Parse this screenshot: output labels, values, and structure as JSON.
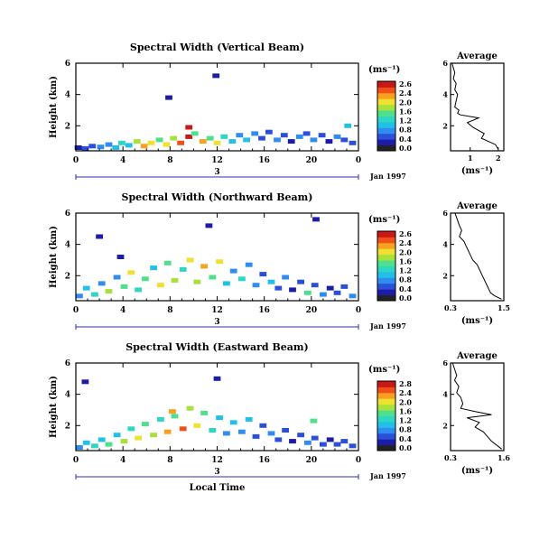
{
  "palette": [
    "#222222",
    "#1c1ca8",
    "#2a4fd8",
    "#2f8df0",
    "#22c0e8",
    "#2ed6c4",
    "#4ee08a",
    "#a8e03c",
    "#f0e030",
    "#f8a020",
    "#f05018",
    "#c81818"
  ],
  "chart_data": [
    {
      "type": "heatmap",
      "title": "Spectral Width (Vertical Beam)",
      "ylabel": "Height (km)",
      "x_ticks": [
        "0",
        "4",
        "8",
        "12",
        "16",
        "20",
        "0"
      ],
      "y_ticks": [
        "6",
        "4",
        "2"
      ],
      "xlim": [
        0,
        24
      ],
      "ylim": [
        0.4,
        6
      ],
      "day_label": "3",
      "date_label": "Jan 1997",
      "colorbar": {
        "unit_label": "(ms⁻¹)",
        "ticks": [
          "2.6",
          "2.4",
          "2.0",
          "1.6",
          "1.2",
          "0.8",
          "0.4",
          "0.0"
        ],
        "range": [
          0,
          2.6
        ]
      },
      "cells": [
        [
          0.2,
          0.6,
          0.3
        ],
        [
          0.8,
          0.55,
          0.5
        ],
        [
          1.4,
          0.7,
          0.4
        ],
        [
          2.1,
          0.65,
          0.8
        ],
        [
          2.8,
          0.8,
          0.6
        ],
        [
          3.4,
          0.6,
          1.0
        ],
        [
          3.9,
          0.9,
          1.2
        ],
        [
          4.5,
          0.75,
          0.9
        ],
        [
          5.2,
          1.0,
          1.6
        ],
        [
          5.8,
          0.7,
          2.2
        ],
        [
          6.4,
          0.9,
          1.8
        ],
        [
          7.1,
          1.1,
          1.4
        ],
        [
          7.7,
          0.8,
          2.0
        ],
        [
          8.3,
          1.2,
          1.7
        ],
        [
          8.9,
          0.9,
          2.4
        ],
        [
          9.6,
          1.3,
          2.6
        ],
        [
          10.1,
          1.5,
          1.5
        ],
        [
          10.8,
          1.0,
          2.1
        ],
        [
          11.4,
          1.2,
          1.3
        ],
        [
          12.0,
          0.9,
          1.9
        ],
        [
          12.6,
          1.3,
          1.1
        ],
        [
          13.3,
          1.0,
          0.9
        ],
        [
          13.9,
          1.4,
          0.7
        ],
        [
          14.5,
          1.1,
          1.0
        ],
        [
          15.2,
          1.5,
          0.6
        ],
        [
          15.8,
          1.2,
          0.5
        ],
        [
          16.4,
          1.6,
          0.4
        ],
        [
          17.1,
          1.1,
          0.8
        ],
        [
          17.7,
          1.4,
          0.5
        ],
        [
          18.3,
          1.0,
          0.3
        ],
        [
          19.0,
          1.3,
          0.6
        ],
        [
          19.6,
          1.5,
          0.4
        ],
        [
          20.2,
          1.1,
          0.7
        ],
        [
          20.9,
          1.4,
          0.5
        ],
        [
          21.5,
          1.0,
          0.3
        ],
        [
          22.2,
          1.3,
          0.6
        ],
        [
          22.8,
          1.1,
          0.4
        ],
        [
          23.5,
          0.9,
          0.5
        ],
        [
          9.6,
          1.9,
          2.6
        ],
        [
          23.1,
          2.0,
          1.0
        ],
        [
          7.9,
          3.8,
          0.2
        ],
        [
          11.9,
          5.2,
          0.2
        ]
      ],
      "average": {
        "title": "Average",
        "xlabel": "(ms⁻¹)",
        "x_ticks": [
          "1",
          "2"
        ],
        "xlim": [
          0.3,
          2.2
        ],
        "x": [
          0.35,
          0.4,
          0.45,
          0.4,
          0.5,
          0.45,
          0.55,
          0.5,
          0.45,
          0.6,
          0.55,
          0.65,
          1.3,
          0.9,
          1.1,
          1.5,
          1.4,
          1.9,
          2.0
        ],
        "y": [
          6.0,
          5.7,
          5.4,
          5.0,
          4.7,
          4.3,
          4.0,
          3.6,
          3.2,
          3.0,
          2.8,
          2.7,
          2.5,
          2.2,
          1.9,
          1.5,
          1.2,
          0.8,
          0.5
        ]
      }
    },
    {
      "type": "heatmap",
      "title": "Spectral Width (Northward Beam)",
      "ylabel": "Height (km)",
      "x_ticks": [
        "0",
        "4",
        "8",
        "12",
        "16",
        "20",
        "0"
      ],
      "y_ticks": [
        "6",
        "4",
        "2"
      ],
      "xlim": [
        0,
        24
      ],
      "ylim": [
        0.4,
        6
      ],
      "day_label": "3",
      "date_label": "Jan 1997",
      "colorbar": {
        "unit_label": "(ms⁻¹)",
        "ticks": [
          "2.6",
          "2.4",
          "2.0",
          "1.6",
          "1.2",
          "0.8",
          "0.4",
          "0.0"
        ],
        "range": [
          0,
          2.6
        ]
      },
      "cells": [
        [
          0.3,
          0.7,
          0.6
        ],
        [
          0.9,
          1.2,
          0.9
        ],
        [
          1.6,
          0.8,
          1.2
        ],
        [
          2.2,
          1.5,
          0.8
        ],
        [
          2.8,
          1.0,
          1.6
        ],
        [
          3.5,
          1.9,
          0.7
        ],
        [
          4.1,
          1.3,
          1.3
        ],
        [
          4.7,
          2.2,
          1.8
        ],
        [
          5.3,
          1.1,
          1.1
        ],
        [
          5.9,
          1.8,
          1.4
        ],
        [
          6.6,
          2.5,
          1.0
        ],
        [
          7.2,
          1.4,
          2.0
        ],
        [
          7.8,
          2.8,
          1.5
        ],
        [
          8.4,
          1.7,
          1.7
        ],
        [
          9.1,
          2.4,
          1.2
        ],
        [
          9.7,
          3.0,
          1.9
        ],
        [
          10.3,
          1.6,
          1.6
        ],
        [
          10.9,
          2.6,
          2.2
        ],
        [
          11.6,
          1.9,
          1.4
        ],
        [
          12.2,
          2.9,
          1.8
        ],
        [
          12.8,
          1.5,
          1.0
        ],
        [
          13.4,
          2.3,
          0.8
        ],
        [
          14.1,
          1.8,
          1.2
        ],
        [
          14.7,
          2.7,
          0.7
        ],
        [
          15.3,
          1.4,
          0.6
        ],
        [
          15.9,
          2.1,
          0.5
        ],
        [
          16.6,
          1.6,
          0.9
        ],
        [
          17.2,
          1.2,
          0.4
        ],
        [
          17.8,
          1.9,
          0.6
        ],
        [
          18.4,
          1.1,
          0.3
        ],
        [
          19.1,
          1.6,
          0.5
        ],
        [
          19.7,
          0.9,
          1.3
        ],
        [
          20.3,
          1.4,
          0.4
        ],
        [
          21.0,
          0.8,
          0.6
        ],
        [
          21.6,
          1.2,
          0.3
        ],
        [
          22.2,
          0.9,
          0.5
        ],
        [
          22.8,
          1.3,
          0.4
        ],
        [
          23.5,
          0.7,
          0.6
        ],
        [
          3.8,
          3.2,
          0.3
        ],
        [
          2.0,
          4.5,
          0.2
        ],
        [
          11.3,
          5.2,
          0.2
        ],
        [
          20.4,
          5.6,
          0.2
        ]
      ],
      "average": {
        "title": "Average",
        "xlabel": "(ms⁻¹)",
        "x_ticks": [
          "0.3",
          "1.5"
        ],
        "xlim": [
          0.3,
          1.5
        ],
        "x": [
          0.4,
          0.45,
          0.5,
          0.55,
          0.5,
          0.6,
          0.65,
          0.7,
          0.75,
          0.8,
          0.9,
          0.95,
          1.0,
          1.05,
          1.1,
          1.15,
          1.2,
          1.3,
          1.45
        ],
        "y": [
          6.0,
          5.6,
          5.2,
          4.9,
          4.5,
          4.2,
          3.9,
          3.6,
          3.3,
          3.0,
          2.7,
          2.4,
          2.1,
          1.8,
          1.5,
          1.2,
          0.9,
          0.7,
          0.5
        ]
      }
    },
    {
      "type": "heatmap",
      "title": "Spectral Width (Eastward Beam)",
      "ylabel": "Height (km)",
      "xlabel": "Local Time",
      "x_ticks": [
        "0",
        "4",
        "8",
        "12",
        "16",
        "20",
        "0"
      ],
      "y_ticks": [
        "6",
        "4",
        "2"
      ],
      "xlim": [
        0,
        24
      ],
      "ylim": [
        0.4,
        6
      ],
      "day_label": "3",
      "date_label": "Jan 1997",
      "colorbar": {
        "unit_label": "(ms⁻¹)",
        "ticks": [
          "2.8",
          "2.4",
          "2.0",
          "1.6",
          "1.2",
          "0.8",
          "0.4",
          "0.0"
        ],
        "range": [
          0,
          2.8
        ]
      },
      "cells": [
        [
          0.3,
          0.6,
          0.7
        ],
        [
          0.9,
          0.9,
          1.0
        ],
        [
          1.6,
          0.7,
          1.3
        ],
        [
          2.2,
          1.1,
          0.9
        ],
        [
          2.8,
          0.8,
          1.5
        ],
        [
          3.5,
          1.4,
          1.1
        ],
        [
          4.1,
          1.0,
          1.7
        ],
        [
          4.7,
          1.8,
          1.3
        ],
        [
          5.3,
          1.2,
          2.0
        ],
        [
          5.9,
          2.1,
          1.4
        ],
        [
          6.6,
          1.4,
          1.8
        ],
        [
          7.2,
          2.4,
          1.2
        ],
        [
          7.8,
          1.6,
          2.2
        ],
        [
          8.4,
          2.6,
          1.6
        ],
        [
          9.1,
          1.8,
          2.5
        ],
        [
          9.7,
          3.1,
          1.9
        ],
        [
          10.3,
          2.0,
          2.1
        ],
        [
          10.9,
          2.8,
          1.5
        ],
        [
          11.6,
          1.7,
          1.3
        ],
        [
          12.2,
          2.5,
          1.0
        ],
        [
          12.8,
          1.5,
          0.8
        ],
        [
          13.4,
          2.2,
          1.1
        ],
        [
          14.1,
          1.6,
          0.7
        ],
        [
          14.7,
          2.4,
          0.9
        ],
        [
          15.3,
          1.3,
          0.6
        ],
        [
          15.9,
          2.0,
          0.5
        ],
        [
          16.6,
          1.5,
          0.8
        ],
        [
          17.2,
          1.1,
          0.4
        ],
        [
          17.8,
          1.7,
          0.6
        ],
        [
          18.4,
          1.0,
          0.3
        ],
        [
          19.1,
          1.4,
          0.5
        ],
        [
          19.7,
          0.9,
          0.7
        ],
        [
          20.3,
          1.2,
          0.4
        ],
        [
          21.0,
          0.8,
          0.6
        ],
        [
          21.6,
          1.1,
          0.3
        ],
        [
          22.2,
          0.8,
          0.5
        ],
        [
          22.8,
          1.0,
          0.4
        ],
        [
          23.5,
          0.7,
          0.6
        ],
        [
          0.8,
          4.8,
          0.2
        ],
        [
          12.0,
          5.0,
          0.2
        ],
        [
          8.2,
          2.9,
          2.4
        ],
        [
          20.2,
          2.3,
          1.4
        ]
      ],
      "average": {
        "title": "Average",
        "xlabel": "(ms⁻¹)",
        "x_ticks": [
          "0.3",
          "1.6"
        ],
        "xlim": [
          0.3,
          1.6
        ],
        "x": [
          0.35,
          0.4,
          0.45,
          0.4,
          0.5,
          0.45,
          0.55,
          0.6,
          0.55,
          0.9,
          1.3,
          0.7,
          1.0,
          0.9,
          1.1,
          1.2,
          1.3,
          1.45,
          1.55
        ],
        "y": [
          6.0,
          5.6,
          5.2,
          4.9,
          4.5,
          4.1,
          3.8,
          3.4,
          3.1,
          2.9,
          2.7,
          2.5,
          2.2,
          1.9,
          1.6,
          1.3,
          1.0,
          0.7,
          0.5
        ]
      }
    }
  ]
}
